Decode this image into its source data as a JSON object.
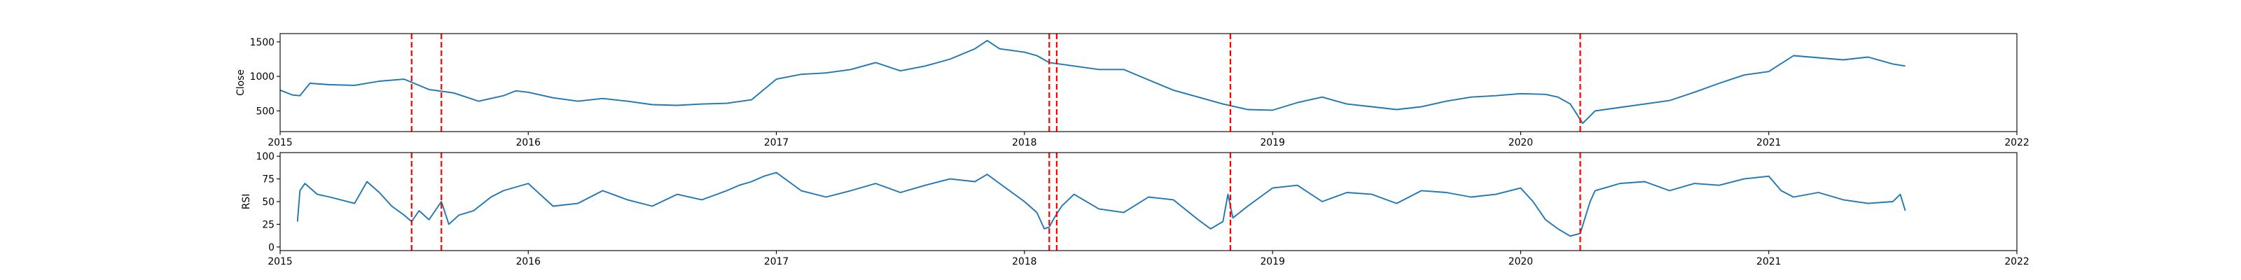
{
  "chart_data": [
    {
      "type": "line",
      "ylabel": "Close",
      "xlim": [
        2015.0,
        2022.0
      ],
      "ylim": [
        200,
        1620
      ],
      "x_ticks": [
        2015,
        2016,
        2017,
        2018,
        2019,
        2020,
        2021,
        2022
      ],
      "x_tick_labels": [
        "2015",
        "2016",
        "2017",
        "2018",
        "2019",
        "2020",
        "2021",
        "2022"
      ],
      "y_ticks": [
        500,
        1000,
        1500
      ],
      "y_tick_labels": [
        "500",
        "1000",
        "1500"
      ],
      "grid": false,
      "line_color": "#1f77b4",
      "series": [
        {
          "x": [
            2015.0,
            2015.05,
            2015.08,
            2015.12,
            2015.2,
            2015.3,
            2015.4,
            2015.5,
            2015.6,
            2015.7,
            2015.75,
            2015.8,
            2015.85,
            2015.9,
            2015.95,
            2016.0,
            2016.1,
            2016.2,
            2016.3,
            2016.4,
            2016.5,
            2016.6,
            2016.7,
            2016.8,
            2016.9,
            2017.0,
            2017.1,
            2017.2,
            2017.3,
            2017.4,
            2017.5,
            2017.6,
            2017.7,
            2017.8,
            2017.85,
            2017.9,
            2018.0,
            2018.05,
            2018.1,
            2018.2,
            2018.3,
            2018.4,
            2018.5,
            2018.6,
            2018.7,
            2018.8,
            2018.9,
            2019.0,
            2019.1,
            2019.2,
            2019.3,
            2019.4,
            2019.5,
            2019.6,
            2019.7,
            2019.8,
            2019.9,
            2020.0,
            2020.1,
            2020.15,
            2020.2,
            2020.25,
            2020.3,
            2020.4,
            2020.5,
            2020.6,
            2020.7,
            2020.8,
            2020.9,
            2021.0,
            2021.1,
            2021.2,
            2021.3,
            2021.4,
            2021.5,
            2021.55
          ],
          "y": [
            800,
            730,
            720,
            900,
            880,
            870,
            930,
            960,
            810,
            760,
            700,
            640,
            680,
            720,
            790,
            770,
            690,
            640,
            680,
            640,
            590,
            580,
            600,
            610,
            660,
            960,
            1030,
            1050,
            1100,
            1200,
            1080,
            1150,
            1250,
            1400,
            1520,
            1400,
            1350,
            1300,
            1200,
            1150,
            1100,
            1100,
            950,
            800,
            700,
            600,
            520,
            510,
            620,
            700,
            600,
            560,
            520,
            560,
            640,
            700,
            720,
            750,
            740,
            700,
            600,
            320,
            500,
            550,
            600,
            650,
            770,
            900,
            1020,
            1070,
            1300,
            1270,
            1240,
            1280,
            1180,
            1150
          ]
        }
      ]
    },
    {
      "type": "line",
      "ylabel": "RSI",
      "xlim": [
        2015.0,
        2022.0
      ],
      "ylim": [
        -4,
        104
      ],
      "x_ticks": [
        2015,
        2016,
        2017,
        2018,
        2019,
        2020,
        2021,
        2022
      ],
      "x_tick_labels": [
        "2015",
        "2016",
        "2017",
        "2018",
        "2019",
        "2020",
        "2021",
        "2022"
      ],
      "y_ticks": [
        0,
        25,
        50,
        75,
        100
      ],
      "y_tick_labels": [
        "0",
        "25",
        "50",
        "75",
        "100"
      ],
      "grid": false,
      "line_color": "#1f77b4",
      "series": [
        {
          "x": [
            2015.07,
            2015.08,
            2015.1,
            2015.15,
            2015.2,
            2015.3,
            2015.35,
            2015.4,
            2015.45,
            2015.5,
            2015.53,
            2015.56,
            2015.6,
            2015.65,
            2015.68,
            2015.72,
            2015.78,
            2015.85,
            2015.9,
            2016.0,
            2016.1,
            2016.2,
            2016.3,
            2016.4,
            2016.5,
            2016.6,
            2016.7,
            2016.8,
            2016.85,
            2016.9,
            2016.95,
            2017.0,
            2017.1,
            2017.2,
            2017.3,
            2017.4,
            2017.5,
            2017.6,
            2017.7,
            2017.8,
            2017.85,
            2017.9,
            2018.0,
            2018.05,
            2018.08,
            2018.1,
            2018.12,
            2018.15,
            2018.2,
            2018.3,
            2018.4,
            2018.5,
            2018.6,
            2018.7,
            2018.75,
            2018.8,
            2018.82,
            2018.84,
            2018.9,
            2019.0,
            2019.1,
            2019.2,
            2019.3,
            2019.4,
            2019.5,
            2019.6,
            2019.7,
            2019.8,
            2019.9,
            2020.0,
            2020.05,
            2020.1,
            2020.15,
            2020.2,
            2020.24,
            2020.28,
            2020.3,
            2020.35,
            2020.4,
            2020.5,
            2020.6,
            2020.7,
            2020.8,
            2020.9,
            2021.0,
            2021.05,
            2021.1,
            2021.2,
            2021.3,
            2021.4,
            2021.5,
            2021.53,
            2021.55
          ],
          "y": [
            28,
            62,
            70,
            58,
            55,
            48,
            72,
            60,
            45,
            35,
            28,
            40,
            30,
            50,
            25,
            35,
            40,
            55,
            62,
            70,
            45,
            48,
            62,
            52,
            45,
            58,
            52,
            62,
            68,
            72,
            78,
            82,
            62,
            55,
            62,
            70,
            60,
            68,
            75,
            72,
            80,
            70,
            50,
            38,
            20,
            22,
            32,
            45,
            58,
            42,
            38,
            55,
            52,
            30,
            20,
            28,
            58,
            32,
            45,
            65,
            68,
            50,
            60,
            58,
            48,
            62,
            60,
            55,
            58,
            65,
            50,
            30,
            20,
            12,
            15,
            50,
            62,
            66,
            70,
            72,
            62,
            70,
            68,
            75,
            78,
            62,
            55,
            60,
            52,
            48,
            50,
            58,
            40
          ]
        }
      ]
    }
  ],
  "event_markers": {
    "color": "#ff0000",
    "x": [
      2015.53,
      2015.65,
      2018.1,
      2018.13,
      2018.83,
      2020.24
    ]
  }
}
